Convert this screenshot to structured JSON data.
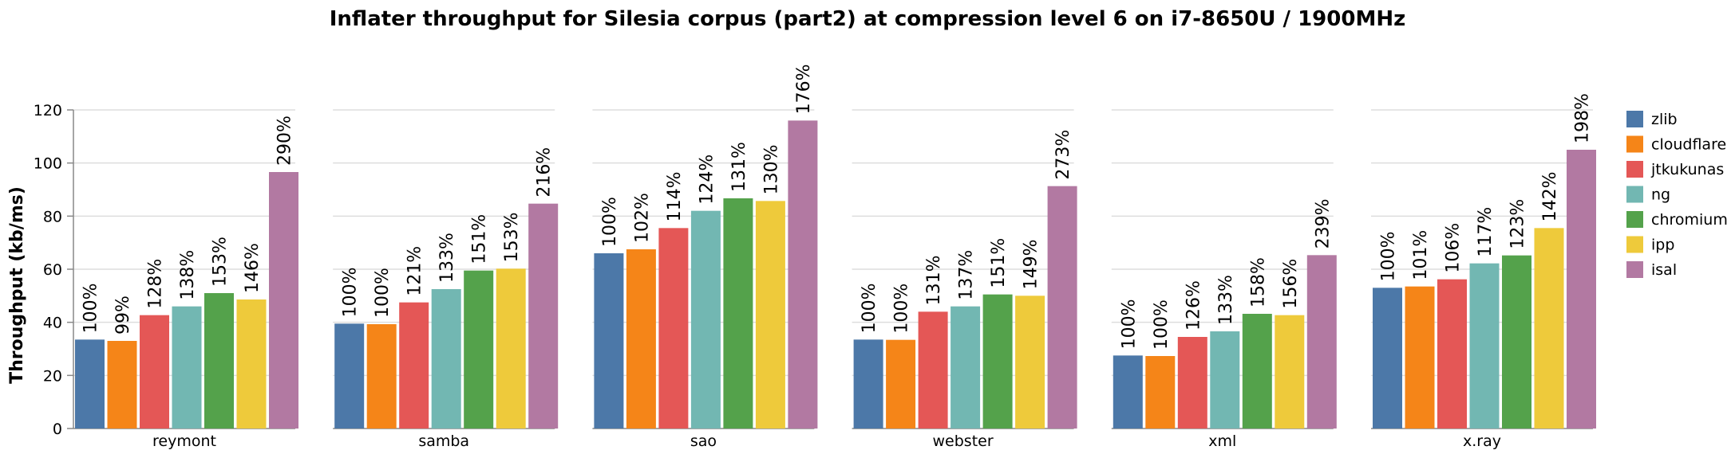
{
  "chart_data": {
    "type": "bar",
    "title": "Inflater throughput for Silesia corpus (part2) at compression level 6 on i7-8650U / 1900MHz",
    "ylabel": "Throughput (kb/ms)",
    "ylim": [
      0,
      120
    ],
    "yticks": [
      0,
      20,
      40,
      60,
      80,
      100,
      120
    ],
    "grid": true,
    "legend": "right",
    "categories": [
      "reymont",
      "samba",
      "sao",
      "webster",
      "xml",
      "x.ray"
    ],
    "series": [
      {
        "name": "zlib",
        "color": "#4c78a8",
        "values": [
          33.5,
          39.5,
          66.0,
          33.5,
          27.5,
          53.0
        ],
        "labels": [
          "100%",
          "100%",
          "100%",
          "100%",
          "100%",
          "100%"
        ]
      },
      {
        "name": "cloudflare",
        "color": "#f58518",
        "values": [
          33.0,
          39.3,
          67.5,
          33.4,
          27.3,
          53.5
        ],
        "labels": [
          "99%",
          "100%",
          "102%",
          "100%",
          "100%",
          "101%"
        ]
      },
      {
        "name": "jtkukunas",
        "color": "#e45756",
        "values": [
          42.7,
          47.5,
          75.5,
          44.0,
          34.5,
          56.2
        ],
        "labels": [
          "128%",
          "121%",
          "114%",
          "131%",
          "126%",
          "106%"
        ]
      },
      {
        "name": "ng",
        "color": "#72b7b2",
        "values": [
          46.0,
          52.5,
          82.0,
          46.0,
          36.6,
          62.2
        ],
        "labels": [
          "138%",
          "133%",
          "124%",
          "137%",
          "133%",
          "117%"
        ]
      },
      {
        "name": "chromium",
        "color": "#54a24b",
        "values": [
          51.0,
          59.5,
          86.7,
          50.5,
          43.2,
          65.2
        ],
        "labels": [
          "153%",
          "151%",
          "131%",
          "151%",
          "158%",
          "123%"
        ]
      },
      {
        "name": "ipp",
        "color": "#eeca3b",
        "values": [
          48.6,
          60.2,
          85.7,
          50.0,
          42.7,
          75.5
        ],
        "labels": [
          "146%",
          "153%",
          "130%",
          "149%",
          "156%",
          "142%"
        ]
      },
      {
        "name": "isal",
        "color": "#b279a2",
        "values": [
          96.6,
          84.7,
          116.0,
          91.3,
          65.3,
          105.0
        ],
        "labels": [
          "290%",
          "216%",
          "176%",
          "273%",
          "239%",
          "198%"
        ]
      }
    ]
  }
}
